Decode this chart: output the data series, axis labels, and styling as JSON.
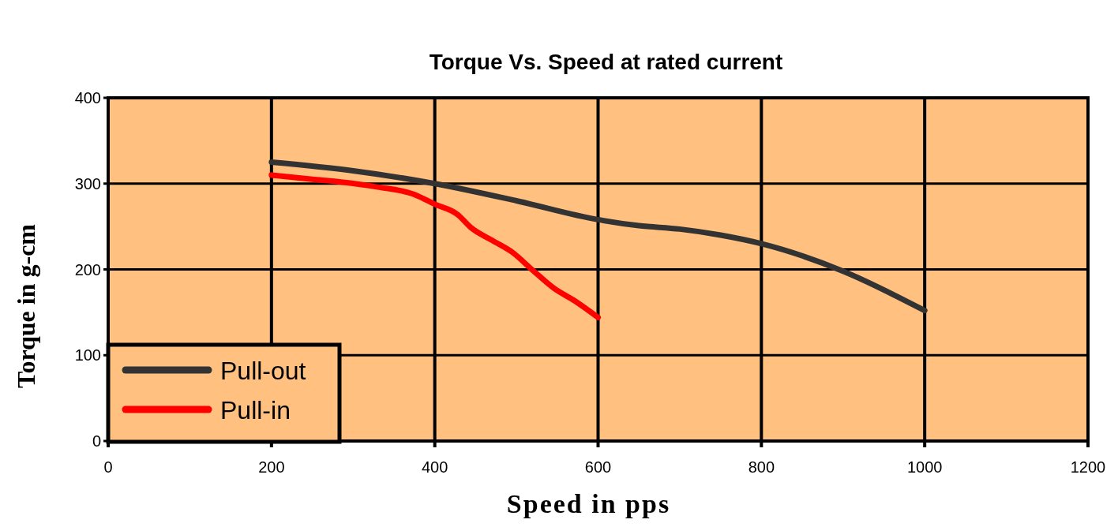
{
  "chart_data": {
    "type": "line",
    "title": "Torque Vs. Speed at rated current",
    "xlabel": "Speed in pps",
    "ylabel": "Torque in g-cm",
    "xlim": [
      0,
      1200
    ],
    "xticks": [
      0,
      200,
      400,
      600,
      800,
      1000,
      1200
    ],
    "ylim": [
      0,
      400
    ],
    "yticks": [
      0,
      100,
      200,
      300,
      400
    ],
    "grid": true,
    "legend": "bottom left",
    "series": [
      {
        "name": "Pull-out",
        "color": "#333333",
        "x": [
          200,
          300,
          400,
          500,
          600,
          650,
          700,
          750,
          800,
          900,
          1000
        ],
        "values": [
          325,
          315,
          300,
          280,
          258,
          251,
          247,
          240,
          230,
          198,
          152
        ]
      },
      {
        "name": "Pull-in",
        "color": "#ff0000",
        "x": [
          200,
          250,
          283,
          330,
          373,
          400,
          428,
          444,
          470,
          495,
          520,
          546,
          572,
          600
        ],
        "values": [
          310,
          305,
          302,
          296,
          288,
          276,
          264,
          249,
          234,
          220,
          199,
          178,
          163,
          144
        ]
      }
    ]
  }
}
